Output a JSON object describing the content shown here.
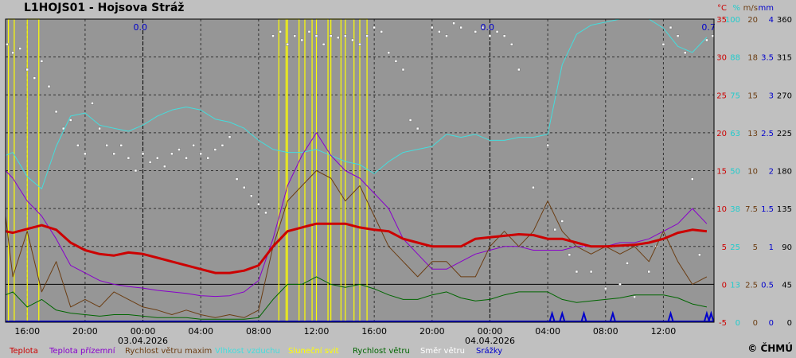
{
  "title": "L1HOJS01 - Hojsova Stráž",
  "copyright": "© ČHMÚ",
  "colors": {
    "background": "#969696",
    "page": "#c0c0c0",
    "temp": "#cc0000",
    "ground_temp": "#8800cc",
    "gust": "#6b3d12",
    "humidity": "#44dddd",
    "sunshine": "#ffff00",
    "wind": "#006600",
    "direction": "#ffffff",
    "precip": "#0000cc"
  },
  "chart_data": {
    "type": "line",
    "grid": true,
    "x_range": [
      14.5,
      63.5
    ],
    "x_tick_labels": [
      {
        "hour": 16,
        "label": "16:00"
      },
      {
        "hour": 20,
        "label": "20:00"
      },
      {
        "hour": 24,
        "label": "00:00",
        "date": "03.04.2026"
      },
      {
        "hour": 28,
        "label": "04:00"
      },
      {
        "hour": 32,
        "label": "08:00"
      },
      {
        "hour": 36,
        "label": "12:00"
      },
      {
        "hour": 40,
        "label": "16:00"
      },
      {
        "hour": 44,
        "label": "20:00"
      },
      {
        "hour": 48,
        "label": "00:00",
        "date": "04.04.2026"
      },
      {
        "hour": 52,
        "label": "04:00"
      },
      {
        "hour": 56,
        "label": "08:00"
      },
      {
        "hour": 60,
        "label": "12:00"
      }
    ],
    "axes": [
      {
        "unit": "°C",
        "color": "#cc0000",
        "ticks": [
          "35",
          "30",
          "25",
          "20",
          "15",
          "10",
          "5",
          "0",
          "-5"
        ]
      },
      {
        "unit": "%",
        "color": "#22cccc",
        "ticks": [
          "100",
          "88",
          "75",
          "63",
          "50",
          "38",
          "25",
          "13",
          "0"
        ]
      },
      {
        "unit": "m/s",
        "color": "#6b3d12",
        "ticks": [
          "20",
          "18",
          "15",
          "13",
          "10",
          "7.5",
          "5",
          "2.5",
          "0"
        ]
      },
      {
        "unit": "mm",
        "color": "#0000cc",
        "ticks": [
          "4",
          "3.5",
          "3",
          "2.5",
          "2",
          "1.5",
          "1",
          "0.5",
          "0"
        ]
      },
      {
        "unit": "",
        "color": "#000000",
        "ticks": [
          "360",
          "315",
          "270",
          "225",
          "180",
          "135",
          "90",
          "45",
          "0"
        ]
      }
    ],
    "precip_totals": [
      {
        "hour": 24,
        "value": "0.0"
      },
      {
        "hour": 48,
        "value": "0.0"
      },
      {
        "hour": 63.3,
        "value": "0.7"
      }
    ],
    "series": [
      {
        "name": "Teplota",
        "color": "#cc0000",
        "width": 3,
        "scale": "temp",
        "x": [
          14.5,
          15,
          16,
          17,
          18,
          19,
          20,
          21,
          22,
          23,
          24,
          25,
          26,
          27,
          28,
          29,
          30,
          31,
          32,
          33,
          34,
          35,
          36,
          37,
          38,
          39,
          40,
          41,
          42,
          43,
          44,
          45,
          46,
          47,
          48,
          49,
          50,
          51,
          52,
          53,
          54,
          55,
          56,
          57,
          58,
          59,
          60,
          61,
          62,
          63
        ],
        "y": [
          7,
          6.8,
          7.3,
          7.8,
          7.2,
          5.5,
          4.5,
          4,
          3.8,
          4.2,
          4,
          3.5,
          3,
          2.5,
          2,
          1.5,
          1.5,
          1.8,
          2.5,
          5,
          7,
          7.5,
          8,
          8,
          8,
          7.5,
          7.2,
          7,
          6,
          5.5,
          5,
          5,
          5,
          6,
          6.2,
          6.4,
          6.6,
          6.5,
          6,
          6,
          5.5,
          5,
          5,
          5.1,
          5.2,
          5.5,
          6,
          6.8,
          7.2,
          7
        ]
      },
      {
        "name": "Teplota přízemní",
        "color": "#8800cc",
        "width": 1,
        "scale": "temp",
        "x": [
          14.5,
          15,
          16,
          17,
          18,
          19,
          20,
          21,
          22,
          23,
          24,
          25,
          26,
          27,
          28,
          29,
          30,
          31,
          32,
          33,
          34,
          35,
          36,
          37,
          38,
          39,
          40,
          41,
          42,
          43,
          44,
          45,
          46,
          47,
          48,
          49,
          50,
          51,
          52,
          53,
          54,
          55,
          56,
          57,
          58,
          59,
          60,
          61,
          62,
          63
        ],
        "y": [
          15,
          14,
          11,
          9,
          6,
          2.5,
          1.5,
          0.5,
          0,
          -0.3,
          -0.5,
          -0.8,
          -1,
          -1.2,
          -1.5,
          -1.6,
          -1.5,
          -1,
          0.5,
          6,
          13,
          17,
          20,
          17,
          15,
          14,
          12,
          10,
          6,
          4,
          2,
          2,
          3,
          4,
          4.5,
          5,
          5,
          4.5,
          4.5,
          4.5,
          5,
          5,
          5,
          5.5,
          5.5,
          6,
          7,
          8,
          10,
          8
        ]
      },
      {
        "name": "Rychlost větru maxim",
        "color": "#6b3d12",
        "width": 1,
        "scale": "wind",
        "x": [
          14.5,
          15,
          16,
          17,
          18,
          19,
          20,
          21,
          22,
          23,
          24,
          25,
          26,
          27,
          28,
          29,
          30,
          31,
          32,
          33,
          34,
          35,
          36,
          37,
          38,
          39,
          40,
          41,
          42,
          43,
          44,
          45,
          46,
          47,
          48,
          49,
          50,
          51,
          52,
          53,
          54,
          55,
          56,
          57,
          58,
          59,
          60,
          61,
          62,
          63
        ],
        "y": [
          7,
          3,
          6,
          2,
          4,
          1,
          1.5,
          1,
          2,
          1.5,
          1,
          0.8,
          0.5,
          0.8,
          0.5,
          0.3,
          0.5,
          0.3,
          0.8,
          5,
          8,
          9,
          10,
          9.5,
          8,
          9,
          7,
          5,
          4,
          3,
          4,
          4,
          3,
          3,
          5,
          6,
          5,
          6,
          8,
          6,
          5,
          4.5,
          5,
          4.5,
          5,
          4,
          6,
          4,
          2.5,
          3
        ]
      },
      {
        "name": "Vlhkost vzduchu",
        "color": "#44dddd",
        "width": 1,
        "scale": "humidity",
        "x": [
          14.5,
          15,
          16,
          17,
          18,
          19,
          20,
          21,
          22,
          23,
          24,
          25,
          26,
          27,
          28,
          29,
          30,
          31,
          32,
          33,
          34,
          35,
          36,
          37,
          38,
          39,
          40,
          41,
          42,
          43,
          44,
          45,
          46,
          47,
          48,
          49,
          50,
          51,
          52,
          53,
          54,
          55,
          56,
          57,
          58,
          59,
          60,
          61,
          62,
          63
        ],
        "y": [
          55,
          56,
          48,
          44,
          58,
          68,
          69,
          65,
          64,
          63,
          65,
          68,
          70,
          71,
          70,
          67,
          66,
          64,
          60,
          57,
          56,
          56,
          57,
          55,
          53,
          52,
          49,
          53,
          56,
          57,
          58,
          62,
          61,
          62,
          60,
          60,
          61,
          61,
          62,
          85,
          95,
          98,
          99,
          100,
          100,
          100,
          97,
          91,
          89,
          94
        ]
      },
      {
        "name": "Sluneční svit",
        "color": "#ffff00",
        "width": 1,
        "scale": "percent"
      },
      {
        "name": "Rychlost větru",
        "color": "#006600",
        "width": 1,
        "scale": "wind",
        "x": [
          14.5,
          15,
          16,
          17,
          18,
          19,
          20,
          21,
          22,
          23,
          24,
          25,
          26,
          27,
          28,
          29,
          30,
          31,
          32,
          33,
          34,
          35,
          36,
          37,
          38,
          39,
          40,
          41,
          42,
          43,
          44,
          45,
          46,
          47,
          48,
          49,
          50,
          51,
          52,
          53,
          54,
          55,
          56,
          57,
          58,
          59,
          60,
          61,
          62,
          63
        ],
        "y": [
          1.8,
          2,
          1,
          1.5,
          0.8,
          0.6,
          0.5,
          0.4,
          0.5,
          0.5,
          0.4,
          0.3,
          0.3,
          0.3,
          0.2,
          0.2,
          0.2,
          0.2,
          0.3,
          1.5,
          2.5,
          2.5,
          3,
          2.5,
          2.3,
          2.5,
          2.2,
          1.8,
          1.5,
          1.5,
          1.8,
          2,
          1.6,
          1.4,
          1.5,
          1.8,
          2,
          2,
          2,
          1.5,
          1.3,
          1.4,
          1.5,
          1.6,
          1.8,
          1.8,
          1.8,
          1.6,
          1.2,
          1
        ]
      },
      {
        "name": "Směr větru",
        "color": "#ffffff",
        "scale": "direction"
      },
      {
        "name": "Srážky",
        "color": "#0000cc",
        "width": 2,
        "scale": "precip"
      }
    ],
    "sunshine_spans": [
      [
        14.7,
        15.1
      ],
      [
        16,
        16.8
      ],
      [
        33.4,
        33.9
      ],
      [
        34,
        34.8
      ],
      [
        35.2,
        35.7
      ],
      [
        36,
        36.8
      ],
      [
        37,
        37.7
      ],
      [
        38,
        38.6
      ],
      [
        39,
        39.5
      ]
    ],
    "precip_spikes": [
      52.3,
      53,
      54.5,
      56.5,
      60.5,
      63,
      63.3
    ],
    "direction_points": [
      [
        14.6,
        330
      ],
      [
        15,
        320
      ],
      [
        15.5,
        325
      ],
      [
        16,
        300
      ],
      [
        16.5,
        290
      ],
      [
        17,
        310
      ],
      [
        17.5,
        280
      ],
      [
        18,
        250
      ],
      [
        18.5,
        230
      ],
      [
        19,
        240
      ],
      [
        19.5,
        210
      ],
      [
        20,
        200
      ],
      [
        20.5,
        260
      ],
      [
        21,
        230
      ],
      [
        21.5,
        210
      ],
      [
        22,
        200
      ],
      [
        22.5,
        210
      ],
      [
        23,
        195
      ],
      [
        23.5,
        180
      ],
      [
        24,
        200
      ],
      [
        24.5,
        190
      ],
      [
        25,
        195
      ],
      [
        25.5,
        185
      ],
      [
        26,
        200
      ],
      [
        26.5,
        205
      ],
      [
        27,
        195
      ],
      [
        27.5,
        210
      ],
      [
        28,
        200
      ],
      [
        28.5,
        195
      ],
      [
        29,
        205
      ],
      [
        29.5,
        210
      ],
      [
        30,
        220
      ],
      [
        30.5,
        170
      ],
      [
        31,
        160
      ],
      [
        31.5,
        150
      ],
      [
        32,
        140
      ],
      [
        32.5,
        130
      ],
      [
        33,
        340
      ],
      [
        33.5,
        345
      ],
      [
        34,
        330
      ],
      [
        34.5,
        340
      ],
      [
        35,
        335
      ],
      [
        35.5,
        345
      ],
      [
        36,
        340
      ],
      [
        36.5,
        330
      ],
      [
        37,
        340
      ],
      [
        37.5,
        338
      ],
      [
        38,
        340
      ],
      [
        38.5,
        335
      ],
      [
        39,
        330
      ],
      [
        39.5,
        340
      ],
      [
        40,
        350
      ],
      [
        40.5,
        345
      ],
      [
        41,
        320
      ],
      [
        41.5,
        310
      ],
      [
        42,
        300
      ],
      [
        42.5,
        240
      ],
      [
        43,
        230
      ],
      [
        44,
        350
      ],
      [
        44.5,
        345
      ],
      [
        45,
        340
      ],
      [
        45.5,
        355
      ],
      [
        46,
        350
      ],
      [
        47,
        345
      ],
      [
        47.5,
        350
      ],
      [
        48,
        340
      ],
      [
        48.5,
        345
      ],
      [
        49,
        340
      ],
      [
        49.5,
        330
      ],
      [
        50,
        300
      ],
      [
        51,
        160
      ],
      [
        52,
        210
      ],
      [
        52.5,
        110
      ],
      [
        53,
        120
      ],
      [
        53.5,
        80
      ],
      [
        54,
        60
      ],
      [
        54.5,
        90
      ],
      [
        55,
        60
      ],
      [
        56,
        40
      ],
      [
        56.5,
        90
      ],
      [
        57,
        45
      ],
      [
        57.5,
        70
      ],
      [
        58,
        30
      ],
      [
        59,
        60
      ],
      [
        59.5,
        90
      ],
      [
        60,
        330
      ],
      [
        60.5,
        350
      ],
      [
        61,
        340
      ],
      [
        61.5,
        320
      ],
      [
        62,
        170
      ],
      [
        62.5,
        80
      ],
      [
        63,
        335
      ],
      [
        63.4,
        340
      ]
    ]
  }
}
